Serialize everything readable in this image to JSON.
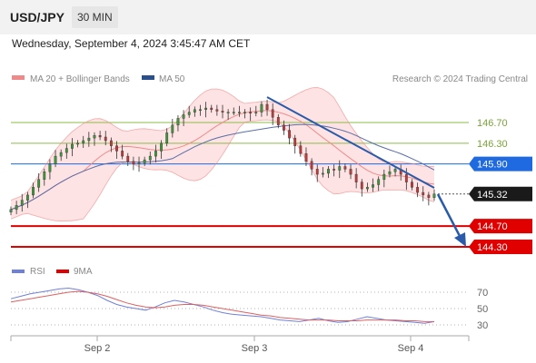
{
  "header": {
    "symbol": "USD/JPY",
    "timeframe": "30 MIN"
  },
  "datetime": "Wednesday, September 4, 2024 3:45:47 AM CET",
  "legend": {
    "bollinger": "MA 20 + Bollinger Bands",
    "ma50": "MA 50",
    "credit": "Research © 2024 Trading Central",
    "rsi": "RSI",
    "rsi_ma": "9MA"
  },
  "colors": {
    "bollinger": "#f08a8a",
    "bollinger_fill": "#fde3e3",
    "ma50": "#5a6ea8",
    "support": "#e00000",
    "resistance": "#8dbb4a",
    "current": "#1f6ae0",
    "arrow": "#2a5bab",
    "candle_up": "#3a9a3a",
    "candle_down": "#c03a3a",
    "rsi": "#6f80d8",
    "rsi_ma": "#e06060"
  },
  "chart_data": [
    {
      "type": "candlestick",
      "x_labels": [
        "Sep 2",
        "Sep 3",
        "Sep 4"
      ],
      "ylim": [
        144.0,
        147.8
      ],
      "levels": [
        {
          "label": "146.70",
          "value": 146.7,
          "kind": "resistance"
        },
        {
          "label": "146.30",
          "value": 146.3,
          "kind": "resistance"
        },
        {
          "label": "145.90",
          "value": 145.9,
          "kind": "current"
        },
        {
          "label": "145.32",
          "value": 145.32,
          "kind": "last"
        },
        {
          "label": "144.70",
          "value": 144.7,
          "kind": "support"
        },
        {
          "label": "144.30",
          "value": 144.3,
          "kind": "support"
        }
      ],
      "close": [
        145.02,
        145.1,
        145.2,
        145.3,
        145.45,
        145.6,
        145.75,
        145.9,
        146.05,
        146.12,
        146.2,
        146.28,
        146.3,
        146.35,
        146.4,
        146.45,
        146.42,
        146.35,
        146.25,
        146.15,
        146.05,
        145.95,
        145.9,
        145.92,
        145.98,
        146.05,
        146.15,
        146.3,
        146.5,
        146.65,
        146.78,
        146.85,
        146.9,
        146.95,
        146.95,
        146.98,
        146.95,
        146.92,
        146.9,
        146.9,
        146.9,
        146.9,
        146.9,
        146.88,
        146.9,
        147.05,
        146.95,
        146.8,
        146.65,
        146.55,
        146.4,
        146.25,
        146.1,
        145.95,
        145.8,
        145.7,
        145.72,
        145.8,
        145.78,
        145.85,
        145.8,
        145.7,
        145.55,
        145.42,
        145.45,
        145.5,
        145.6,
        145.7,
        145.75,
        145.8,
        145.7,
        145.55,
        145.45,
        145.35,
        145.3,
        145.25,
        145.32
      ],
      "rsi": [
        62,
        65,
        68,
        70,
        72,
        74,
        75,
        73,
        70,
        66,
        60,
        55,
        52,
        50,
        48,
        52,
        57,
        60,
        58,
        55,
        52,
        48,
        45,
        43,
        42,
        41,
        40,
        38,
        36,
        35,
        34,
        36,
        38,
        35,
        33,
        34,
        37,
        40,
        38,
        36,
        35,
        34,
        33,
        32,
        34
      ],
      "rsi_ma": [
        58,
        60,
        62,
        64,
        66,
        68,
        70,
        71,
        70,
        68,
        65,
        61,
        57,
        54,
        52,
        51,
        52,
        54,
        55,
        55,
        54,
        52,
        50,
        48,
        46,
        44,
        42,
        41,
        39,
        38,
        37,
        36,
        36,
        36,
        35,
        35,
        35,
        36,
        36,
        36,
        36,
        35,
        35,
        34,
        34
      ],
      "rsi_levels": [
        "70",
        "50",
        "30"
      ]
    }
  ]
}
